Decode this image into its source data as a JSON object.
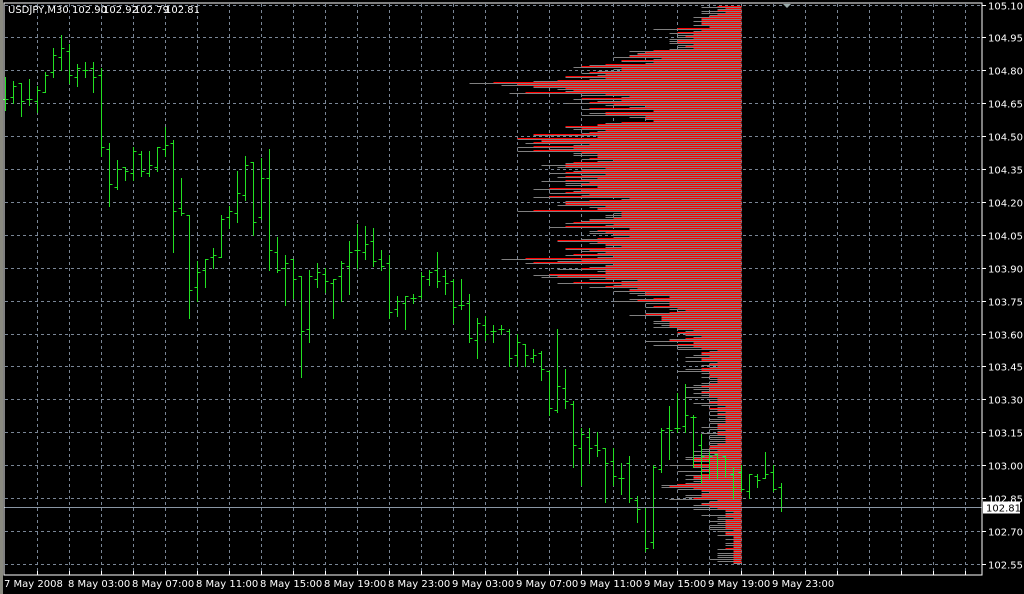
{
  "header": {
    "symbol": "USDJPY,M30",
    "open": "102.90",
    "high": "102.92",
    "low": "102.79",
    "close": "102.81"
  },
  "current_price_label": "102.81",
  "colors": {
    "background": "#000000",
    "bars": "#22e022",
    "grid": "#7a8696",
    "profile": "#ff0000",
    "profile_secondary": "#808080",
    "axis": "#ffffff"
  },
  "chart_data": {
    "type": "ohlc",
    "title": "USDJPY,M30",
    "timeframe": "M30",
    "ylim": [
      102.52,
      105.12
    ],
    "grid": true,
    "y_ticks": [
      "105.10",
      "104.95",
      "104.80",
      "104.65",
      "104.50",
      "104.35",
      "104.20",
      "104.05",
      "103.90",
      "103.75",
      "103.60",
      "103.45",
      "103.30",
      "103.15",
      "103.00",
      "102.85",
      "102.70",
      "102.55"
    ],
    "x_ticks": [
      "7 May 2008",
      "8 May 03:00",
      "8 May 07:00",
      "8 May 11:00",
      "8 May 15:00",
      "8 May 19:00",
      "8 May 23:00",
      "9 May 03:00",
      "9 May 07:00",
      "9 May 11:00",
      "9 May 15:00",
      "9 May 19:00",
      "9 May 23:00"
    ],
    "bars_ohlc": [
      [
        104.67,
        104.77,
        104.62,
        104.67
      ],
      [
        104.68,
        104.75,
        104.65,
        104.73
      ],
      [
        104.74,
        104.74,
        104.59,
        104.66
      ],
      [
        104.67,
        104.76,
        104.64,
        104.67
      ],
      [
        104.66,
        104.73,
        104.61,
        104.71
      ],
      [
        104.7,
        104.79,
        104.7,
        104.78
      ],
      [
        104.79,
        104.9,
        104.77,
        104.87
      ],
      [
        104.86,
        104.96,
        104.8,
        104.9
      ],
      [
        104.89,
        104.92,
        104.74,
        104.78
      ],
      [
        104.77,
        104.83,
        104.73,
        104.81
      ],
      [
        104.8,
        104.84,
        104.77,
        104.8
      ],
      [
        104.81,
        104.84,
        104.7,
        104.77
      ],
      [
        104.78,
        104.81,
        104.41,
        104.45
      ],
      [
        104.44,
        104.47,
        104.18,
        104.28
      ],
      [
        104.27,
        104.39,
        104.26,
        104.35
      ],
      [
        104.36,
        104.36,
        104.3,
        104.34
      ],
      [
        104.33,
        104.45,
        104.3,
        104.43
      ],
      [
        104.42,
        104.43,
        104.32,
        104.34
      ],
      [
        104.33,
        104.43,
        104.32,
        104.37
      ],
      [
        104.36,
        104.45,
        104.34,
        104.45
      ],
      [
        104.44,
        104.54,
        104.41,
        104.46
      ],
      [
        104.47,
        104.48,
        103.97,
        104.16
      ],
      [
        104.17,
        104.31,
        104.14,
        104.15
      ],
      [
        104.14,
        104.14,
        103.67,
        103.8
      ],
      [
        103.81,
        103.93,
        103.75,
        103.88
      ],
      [
        103.89,
        103.94,
        103.81,
        103.94
      ],
      [
        103.95,
        103.99,
        103.9,
        103.96
      ],
      [
        103.95,
        104.14,
        103.95,
        104.12
      ],
      [
        104.13,
        104.18,
        104.08,
        104.16
      ],
      [
        104.15,
        104.34,
        104.11,
        104.24
      ],
      [
        104.23,
        104.41,
        104.21,
        104.37
      ],
      [
        104.38,
        104.38,
        104.05,
        104.11
      ],
      [
        104.13,
        104.4,
        104.12,
        104.31
      ],
      [
        104.31,
        104.44,
        103.89,
        103.98
      ],
      [
        103.97,
        104.04,
        103.88,
        103.89
      ],
      [
        103.9,
        103.96,
        103.73,
        103.92
      ],
      [
        103.94,
        103.94,
        103.76,
        103.85
      ],
      [
        103.86,
        103.86,
        103.4,
        103.61
      ],
      [
        103.62,
        103.89,
        103.56,
        103.86
      ],
      [
        103.85,
        103.92,
        103.81,
        103.88
      ],
      [
        103.87,
        103.9,
        103.79,
        103.84
      ],
      [
        103.83,
        103.85,
        103.67,
        103.85
      ],
      [
        103.86,
        103.93,
        103.75,
        103.92
      ],
      [
        103.91,
        104.02,
        103.78,
        103.97
      ],
      [
        103.98,
        104.1,
        103.9,
        103.98
      ],
      [
        103.97,
        104.09,
        103.94,
        104.01
      ],
      [
        104.02,
        104.08,
        103.91,
        103.93
      ],
      [
        103.94,
        103.98,
        103.89,
        103.91
      ],
      [
        103.92,
        103.96,
        103.67,
        103.7
      ],
      [
        103.71,
        103.77,
        103.68,
        103.75
      ],
      [
        103.74,
        103.77,
        103.62,
        103.77
      ],
      [
        103.76,
        103.78,
        103.74,
        103.76
      ],
      [
        103.77,
        103.88,
        103.76,
        103.86
      ],
      [
        103.85,
        103.89,
        103.82,
        103.88
      ],
      [
        103.89,
        103.97,
        103.81,
        103.84
      ],
      [
        103.86,
        103.89,
        103.78,
        103.83
      ],
      [
        103.84,
        103.85,
        103.65,
        103.72
      ],
      [
        103.73,
        103.85,
        103.71,
        103.73
      ],
      [
        103.74,
        103.78,
        103.56,
        103.58
      ],
      [
        103.57,
        103.67,
        103.49,
        103.65
      ],
      [
        103.64,
        103.68,
        103.57,
        103.6
      ],
      [
        103.61,
        103.64,
        103.56,
        103.61
      ],
      [
        103.62,
        103.64,
        103.6,
        103.62
      ],
      [
        103.61,
        103.62,
        103.45,
        103.49
      ],
      [
        103.5,
        103.6,
        103.45,
        103.56
      ],
      [
        103.55,
        103.55,
        103.45,
        103.5
      ],
      [
        103.49,
        103.53,
        103.47,
        103.5
      ],
      [
        103.51,
        103.52,
        103.39,
        103.44
      ],
      [
        103.43,
        103.43,
        103.23,
        103.26
      ],
      [
        103.25,
        103.62,
        103.24,
        103.36
      ],
      [
        103.35,
        103.44,
        103.26,
        103.29
      ],
      [
        103.28,
        103.29,
        102.99,
        103.09
      ],
      [
        103.08,
        103.17,
        102.91,
        103.14
      ],
      [
        103.13,
        103.17,
        103.01,
        103.08
      ],
      [
        103.09,
        103.15,
        103.04,
        103.07
      ],
      [
        103.08,
        103.08,
        102.83,
        103.01
      ],
      [
        103.02,
        103.08,
        102.91,
        102.95
      ],
      [
        102.94,
        103.01,
        102.87,
        102.94
      ],
      [
        103.01,
        103.04,
        102.83,
        102.85
      ],
      [
        102.84,
        102.86,
        102.74,
        102.8
      ],
      [
        102.81,
        102.81,
        102.61,
        102.62
      ],
      [
        102.65,
        103.0,
        102.62,
        102.99
      ],
      [
        102.98,
        103.17,
        102.97,
        103.16
      ],
      [
        103.17,
        103.27,
        103.03,
        103.16
      ],
      [
        103.17,
        103.33,
        103.15,
        103.17
      ],
      [
        103.18,
        103.37,
        103.15,
        103.23
      ],
      [
        103.22,
        103.23,
        102.99,
        103.22
      ],
      [
        103.09,
        103.14,
        102.92,
        103.04
      ],
      [
        103.03,
        103.06,
        102.94,
        103.04
      ],
      [
        103.05,
        103.05,
        102.94,
        103.03
      ],
      [
        103.04,
        103.04,
        102.95,
        103.03
      ],
      [
        102.96,
        102.99,
        102.85,
        102.9
      ],
      [
        102.97,
        103.0,
        102.88,
        102.89
      ],
      [
        102.88,
        102.96,
        102.85,
        102.96
      ],
      [
        102.95,
        102.96,
        102.9,
        102.93
      ],
      [
        102.94,
        103.06,
        102.94,
        102.96
      ],
      [
        102.97,
        103.0,
        102.88,
        102.89
      ],
      [
        102.9,
        102.92,
        102.79,
        102.81
      ]
    ],
    "current_price": 102.81,
    "price_profile": {
      "level_step": 0.05,
      "top_price": 105.1,
      "counts": [
        4,
        6,
        8,
        10,
        16,
        20,
        25,
        32,
        25,
        20,
        19,
        29,
        34,
        30,
        28,
        23,
        24,
        25,
        26,
        23,
        23,
        24,
        24,
        28,
        25,
        21,
        15,
        12,
        13,
        11,
        9,
        6,
        6,
        6,
        5,
        5,
        4,
        3,
        3,
        3,
        5,
        7,
        7,
        9,
        6,
        5,
        2,
        2,
        2,
        2,
        1
      ]
    }
  }
}
